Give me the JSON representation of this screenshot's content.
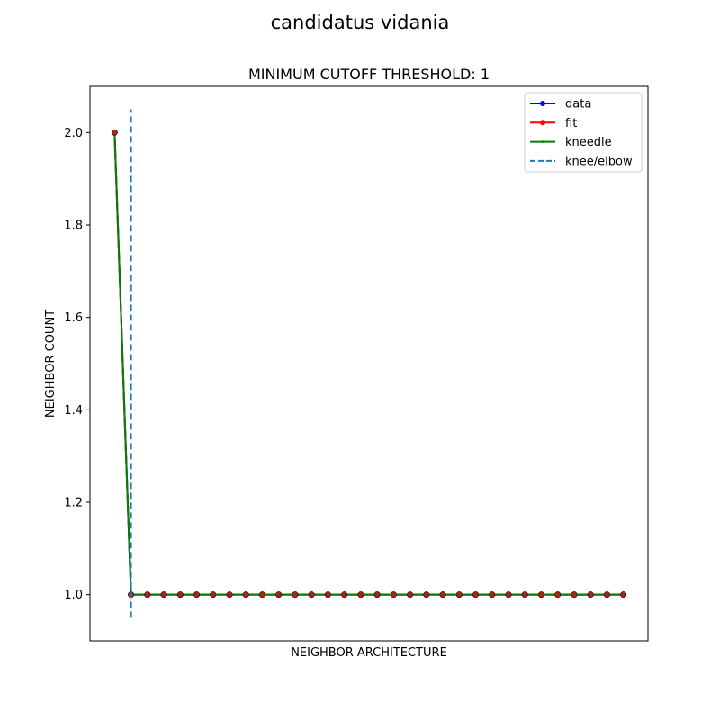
{
  "chart_data": {
    "type": "line",
    "suptitle": "candidatus vidania",
    "title": "MINIMUM CUTOFF THRESHOLD: 1",
    "xlabel": "NEIGHBOR ARCHITECTURE",
    "ylabel": "NEIGHBOR COUNT",
    "x": [
      0,
      1,
      2,
      3,
      4,
      5,
      6,
      7,
      8,
      9,
      10,
      11,
      12,
      13,
      14,
      15,
      16,
      17,
      18,
      19,
      20,
      21,
      22,
      23,
      24,
      25,
      26,
      27,
      28,
      29,
      30,
      31
    ],
    "xlim": [
      -1.5,
      32.5
    ],
    "ylim": [
      0.9,
      2.1
    ],
    "yticks": [
      1.0,
      1.2,
      1.4,
      1.6,
      1.8,
      2.0
    ],
    "yticklabels": [
      "1.0",
      "1.2",
      "1.4",
      "1.6",
      "1.8",
      "2.0"
    ],
    "grid": false,
    "legend_position": "top-right",
    "series": [
      {
        "name": "data",
        "color": "#0000ff",
        "marker": "circle",
        "values": [
          2,
          1,
          1,
          1,
          1,
          1,
          1,
          1,
          1,
          1,
          1,
          1,
          1,
          1,
          1,
          1,
          1,
          1,
          1,
          1,
          1,
          1,
          1,
          1,
          1,
          1,
          1,
          1,
          1,
          1,
          1,
          1
        ]
      },
      {
        "name": "fit",
        "color": "#ff0000",
        "marker": "circle",
        "values": [
          2,
          1,
          1,
          1,
          1,
          1,
          1,
          1,
          1,
          1,
          1,
          1,
          1,
          1,
          1,
          1,
          1,
          1,
          1,
          1,
          1,
          1,
          1,
          1,
          1,
          1,
          1,
          1,
          1,
          1,
          1,
          1
        ]
      },
      {
        "name": "kneedle",
        "color": "#008000",
        "marker": "point",
        "values": [
          2,
          1,
          1,
          1,
          1,
          1,
          1,
          1,
          1,
          1,
          1,
          1,
          1,
          1,
          1,
          1,
          1,
          1,
          1,
          1,
          1,
          1,
          1,
          1,
          1,
          1,
          1,
          1,
          1,
          1,
          1,
          1
        ]
      }
    ],
    "knee": {
      "name": "knee/elbow",
      "x": 1,
      "ymin": 0.95,
      "ymax": 2.05,
      "color": "#1f77b4",
      "style": "dashed"
    }
  }
}
